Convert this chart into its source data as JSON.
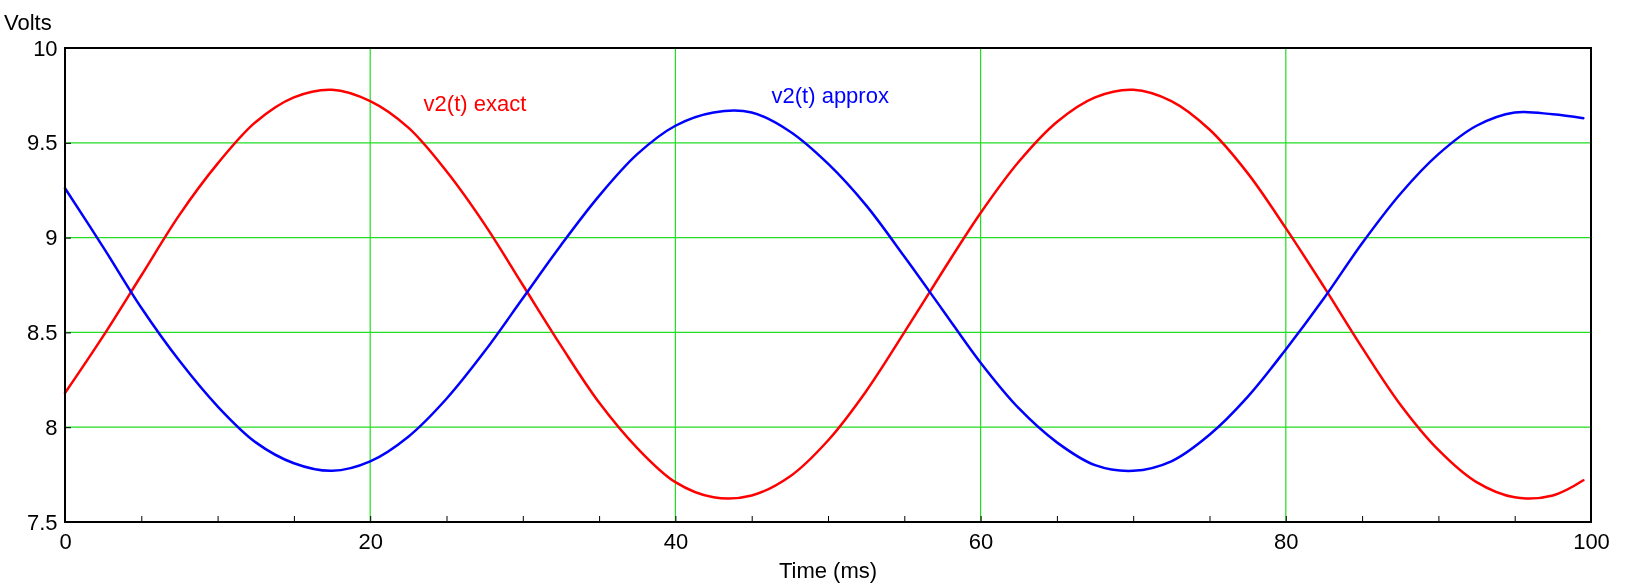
{
  "chart_data": {
    "type": "line",
    "xlabel": "Time (ms)",
    "ylabel": "Volts",
    "x": [
      0,
      2.5,
      5,
      7.5,
      10,
      12.5,
      15,
      17.5,
      20,
      22.5,
      25,
      27.5,
      30,
      32.5,
      35,
      37.5,
      40,
      42.5,
      45,
      47.5,
      50,
      52.5,
      55,
      57.5,
      60,
      62.5,
      65,
      67.5,
      70,
      72.5,
      75,
      77.5,
      80,
      82.5,
      85,
      87.5,
      90,
      92.5,
      95,
      97.5,
      99.5
    ],
    "series": [
      {
        "name": "v2(t) exact",
        "color": "#ff0000",
        "values": [
          8.18,
          8.48,
          8.8,
          9.12,
          9.39,
          9.61,
          9.74,
          9.78,
          9.72,
          9.58,
          9.35,
          9.07,
          8.75,
          8.43,
          8.13,
          7.89,
          7.71,
          7.63,
          7.64,
          7.74,
          7.93,
          8.19,
          8.5,
          8.82,
          9.13,
          9.4,
          9.61,
          9.74,
          9.78,
          9.72,
          9.57,
          9.34,
          9.05,
          8.74,
          8.42,
          8.12,
          7.88,
          7.71,
          7.63,
          7.64,
          7.72
        ]
      },
      {
        "name": "v2(t) approx",
        "color": "#0000ff",
        "values": [
          9.26,
          8.95,
          8.63,
          8.35,
          8.11,
          7.92,
          7.81,
          7.77,
          7.82,
          7.95,
          8.15,
          8.4,
          8.68,
          8.96,
          9.22,
          9.44,
          9.59,
          9.66,
          9.66,
          9.56,
          9.39,
          9.17,
          8.9,
          8.62,
          8.34,
          8.1,
          7.92,
          7.8,
          7.77,
          7.82,
          7.96,
          8.16,
          8.41,
          8.68,
          8.97,
          9.23,
          9.44,
          9.59,
          9.66,
          9.65,
          9.63
        ]
      }
    ],
    "xlim": [
      0,
      100
    ],
    "ylim": [
      7.5,
      10
    ],
    "xticks": [
      0,
      {
        "value": 5,
        "label": null
      },
      {
        "value": 10,
        "label": null
      },
      {
        "value": 15,
        "label": null
      },
      20,
      {
        "value": 25,
        "label": null
      },
      {
        "value": 30,
        "label": null
      },
      {
        "value": 35,
        "label": null
      },
      40,
      {
        "value": 45,
        "label": null
      },
      {
        "value": 50,
        "label": null
      },
      {
        "value": 55,
        "label": null
      },
      60,
      {
        "value": 65,
        "label": null
      },
      {
        "value": 70,
        "label": null
      },
      {
        "value": 75,
        "label": null
      },
      80,
      {
        "value": 85,
        "label": null
      },
      {
        "value": 90,
        "label": null
      },
      {
        "value": 95,
        "label": null
      },
      100
    ],
    "yticks": [
      7.5,
      8,
      8.5,
      9,
      9.5,
      10
    ],
    "grid": true,
    "legend": false,
    "marker": "none",
    "line_style": "solid"
  }
}
